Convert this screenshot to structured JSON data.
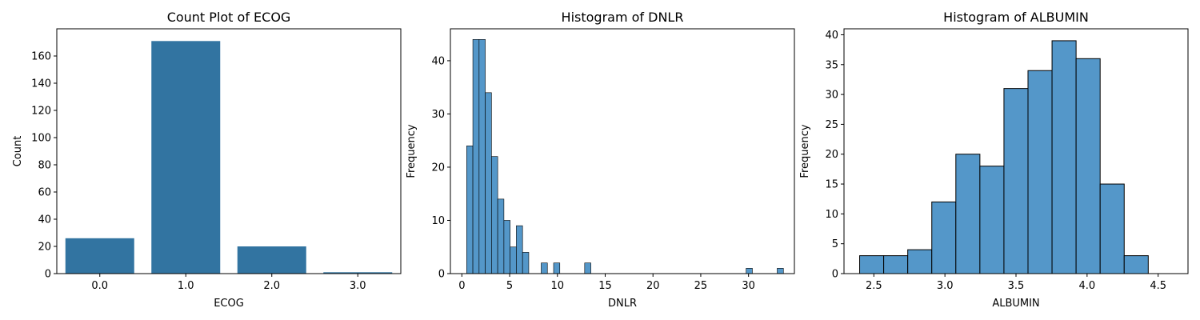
{
  "chart_data": [
    {
      "type": "bar",
      "title": "Count Plot of ECOG",
      "xlabel": "ECOG",
      "ylabel": "Count",
      "categories": [
        "0.0",
        "1.0",
        "2.0",
        "3.0"
      ],
      "values": [
        26,
        171,
        20,
        1
      ],
      "ylim": [
        0,
        180
      ],
      "yticks": [
        0,
        20,
        40,
        60,
        80,
        100,
        120,
        140,
        160
      ],
      "bar_color": "#3274a1",
      "grid": false
    },
    {
      "type": "bar",
      "subtype": "histogram",
      "title": "Histogram of DNLR",
      "xlabel": "DNLR",
      "ylabel": "Frequency",
      "bin_start": 0.5,
      "bin_width": 0.65,
      "values": [
        24,
        44,
        44,
        34,
        22,
        14,
        10,
        5,
        9,
        4,
        0,
        0,
        2,
        0,
        2,
        0,
        0,
        0,
        0,
        2,
        0,
        0,
        0,
        0,
        0,
        0,
        0,
        0,
        0,
        0,
        0,
        0,
        0,
        0,
        0,
        0,
        0,
        0,
        0,
        0,
        0,
        0,
        0,
        0,
        0,
        1,
        0,
        0,
        0,
        0,
        1
      ],
      "xlim": [
        -1.2,
        34.8
      ],
      "ylim": [
        0,
        46
      ],
      "xticks": [
        0,
        5,
        10,
        15,
        20,
        25,
        30
      ],
      "yticks": [
        0,
        10,
        20,
        30,
        40
      ],
      "bar_color": "#5497c9",
      "edge_color": "#000000",
      "grid": false
    },
    {
      "type": "bar",
      "subtype": "histogram",
      "title": "Histogram of ALBUMIN",
      "xlabel": "ALBUMIN",
      "ylabel": "Frequency",
      "bin_start": 2.4,
      "bin_width": 0.1692,
      "values": [
        3,
        3,
        4,
        12,
        20,
        18,
        31,
        34,
        39,
        36,
        15,
        3
      ],
      "xlim": [
        2.29,
        4.71
      ],
      "ylim": [
        0,
        41
      ],
      "xticks": [
        "2.5",
        "3.0",
        "3.5",
        "4.0",
        "4.5"
      ],
      "yticks": [
        0,
        5,
        10,
        15,
        20,
        25,
        30,
        35,
        40
      ],
      "bar_color": "#5497c9",
      "edge_color": "#000000",
      "grid": false
    }
  ]
}
